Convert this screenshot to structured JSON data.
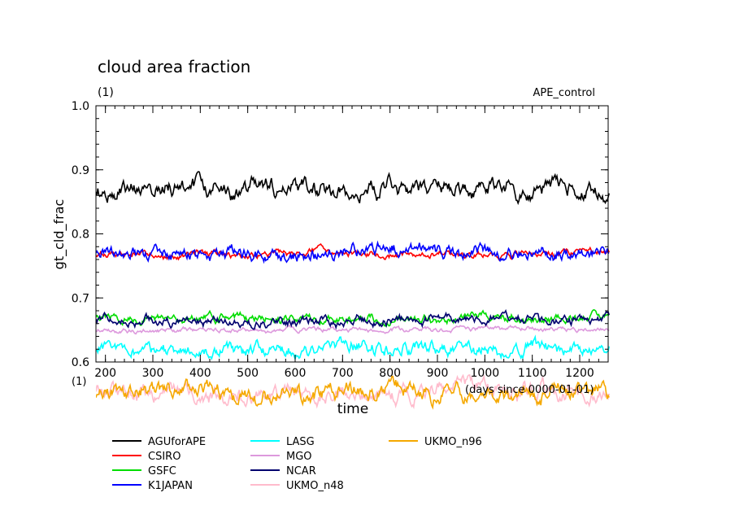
{
  "chart_data": {
    "type": "line",
    "title": "cloud area fraction",
    "units": "(1)",
    "experiment": "APE_control",
    "ylabel": "gt_cld_frac",
    "xlabel": "time",
    "x_units_label": "(days since 0000-01-01)",
    "x_units_prefix": "(1)",
    "xlim": [
      180,
      1260
    ],
    "ylim": [
      0.6,
      1.0
    ],
    "x_ticks": [
      200,
      300,
      400,
      500,
      600,
      700,
      800,
      900,
      1000,
      1100,
      1200
    ],
    "y_ticks": [
      "0.6",
      "0.7",
      "0.8",
      "0.9",
      "1.0"
    ],
    "grid": false,
    "legend_position": "bottom",
    "series": [
      {
        "name": "AGUforAPE",
        "color": "#000000",
        "mean": 0.87,
        "amp": 0.018,
        "seed": 11
      },
      {
        "name": "CSIRO",
        "color": "#ff0000",
        "mean": 0.768,
        "amp": 0.007,
        "seed": 23
      },
      {
        "name": "GSFC",
        "color": "#00dd00",
        "mean": 0.668,
        "amp": 0.009,
        "seed": 37
      },
      {
        "name": "K1JAPAN",
        "color": "#0000ff",
        "mean": 0.772,
        "amp": 0.014,
        "seed": 41
      },
      {
        "name": "LASG",
        "color": "#00ffff",
        "mean": 0.62,
        "amp": 0.014,
        "seed": 53
      },
      {
        "name": "MGO",
        "color": "#dd99dd",
        "mean": 0.65,
        "amp": 0.005,
        "seed": 67
      },
      {
        "name": "NCAR",
        "color": "#00006e",
        "mean": 0.665,
        "amp": 0.01,
        "seed": 71
      },
      {
        "name": "UKMO_n48",
        "color": "#ffbbcc",
        "mean": 0.555,
        "amp": 0.017,
        "seed": 83
      },
      {
        "name": "UKMO_n96",
        "color": "#f5a800",
        "mean": 0.55,
        "amp": 0.018,
        "seed": 97
      }
    ]
  }
}
